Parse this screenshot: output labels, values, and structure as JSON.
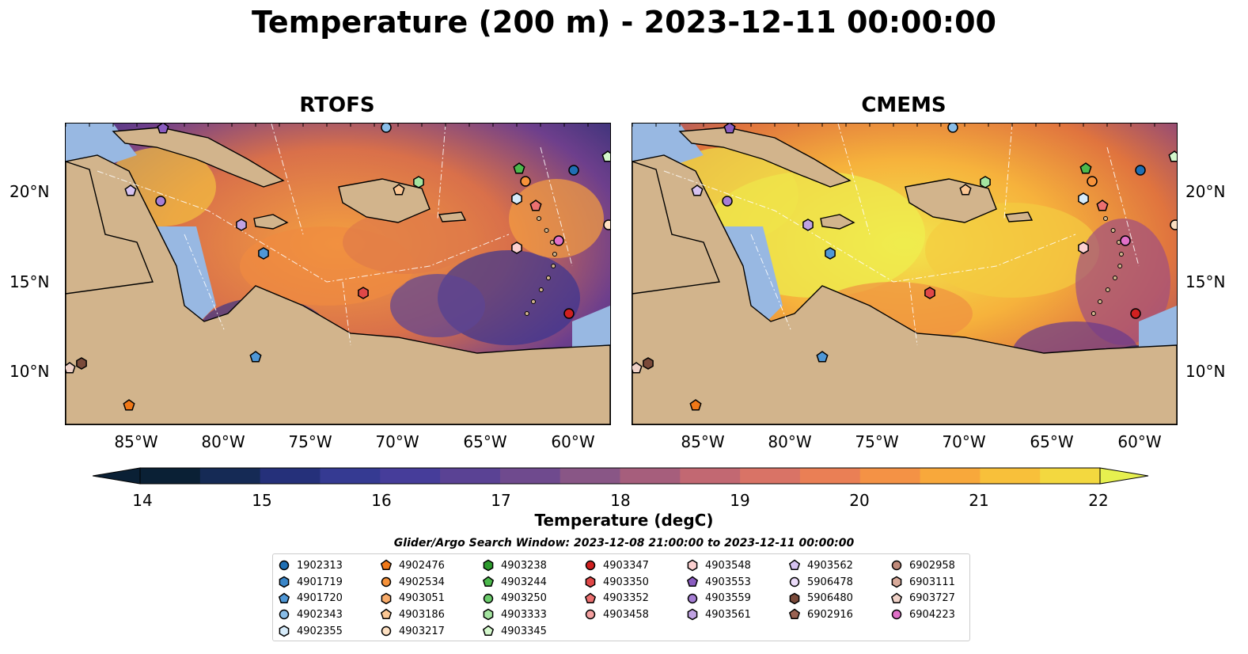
{
  "title": "Temperature (200 m) - 2023-12-11 00:00:00",
  "panels": [
    {
      "title": "RTOFS"
    },
    {
      "title": "CMEMS"
    }
  ],
  "lat_ticks": [
    "20°N",
    "15°N",
    "10°N"
  ],
  "lon_ticks": [
    "85°W",
    "80°W",
    "75°W",
    "70°W",
    "65°W",
    "60°W"
  ],
  "colorbar": {
    "label": "Temperature (degC)",
    "ticks": [
      "14",
      "15",
      "16",
      "17",
      "18",
      "19",
      "20",
      "21",
      "22"
    ],
    "colors": [
      "#0a2035",
      "#152a55",
      "#25307a",
      "#353a92",
      "#463d9a",
      "#5a4294",
      "#6f4a8e",
      "#895686",
      "#a65e7c",
      "#c26872",
      "#d97366",
      "#ea7f55",
      "#f49245",
      "#f8a83b",
      "#f8c03a",
      "#f3d83f",
      "#e6f04f"
    ]
  },
  "legend": {
    "title": "Glider/Argo Search Window: 2023-12-08 21:00:00 to 2023-12-11 00:00:00",
    "columns": [
      [
        {
          "id": "1902313",
          "shape": "circle",
          "color": "#1f6fb4"
        },
        {
          "id": "4901719",
          "shape": "hexagon",
          "color": "#3a86c8"
        },
        {
          "id": "4901720",
          "shape": "pentagon",
          "color": "#4f97d6"
        },
        {
          "id": "4902343",
          "shape": "circle",
          "color": "#89bde8"
        },
        {
          "id": "4902355",
          "shape": "hexagon",
          "color": "#d6ebfa"
        }
      ],
      [
        {
          "id": "4902476",
          "shape": "pentagon",
          "color": "#f07818"
        },
        {
          "id": "4902534",
          "shape": "circle",
          "color": "#f6923a"
        },
        {
          "id": "4903051",
          "shape": "hexagon",
          "color": "#f8ab6a"
        },
        {
          "id": "4903186",
          "shape": "pentagon",
          "color": "#fbc794"
        },
        {
          "id": "4903217",
          "shape": "circle",
          "color": "#fde0c2"
        }
      ],
      [
        {
          "id": "4903238",
          "shape": "hexagon",
          "color": "#2c9a2c"
        },
        {
          "id": "4903244",
          "shape": "pentagon",
          "color": "#4cb84c"
        },
        {
          "id": "4903250",
          "shape": "circle",
          "color": "#6ccc6c"
        },
        {
          "id": "4903333",
          "shape": "hexagon",
          "color": "#a4e4a0"
        },
        {
          "id": "4903345",
          "shape": "pentagon",
          "color": "#d4f8cc"
        }
      ],
      [
        {
          "id": "4903347",
          "shape": "circle",
          "color": "#d02020"
        },
        {
          "id": "4903350",
          "shape": "hexagon",
          "color": "#e04848"
        },
        {
          "id": "4903352",
          "shape": "pentagon",
          "color": "#ec7070"
        },
        {
          "id": "4903458",
          "shape": "circle",
          "color": "#f4a0a0"
        }
      ],
      [
        {
          "id": "4903548",
          "shape": "hexagon",
          "color": "#fcd0d0"
        },
        {
          "id": "4903553",
          "shape": "pentagon",
          "color": "#8a5cc0"
        },
        {
          "id": "4903559",
          "shape": "circle",
          "color": "#a67ed4"
        },
        {
          "id": "4903561",
          "shape": "hexagon",
          "color": "#c0a2e2"
        }
      ],
      [
        {
          "id": "4903562",
          "shape": "pentagon",
          "color": "#d6c2f0"
        },
        {
          "id": "5906478",
          "shape": "circle",
          "color": "#ecdcfa"
        },
        {
          "id": "5906480",
          "shape": "hexagon",
          "color": "#7a4a3a"
        },
        {
          "id": "6902916",
          "shape": "pentagon",
          "color": "#9a6252"
        }
      ],
      [
        {
          "id": "6902958",
          "shape": "circle",
          "color": "#c08a7a"
        },
        {
          "id": "6903111",
          "shape": "hexagon",
          "color": "#d8aa9a"
        },
        {
          "id": "6903727",
          "shape": "pentagon",
          "color": "#f0d2c8"
        },
        {
          "id": "6904223",
          "shape": "circle",
          "color": "#e070c8"
        }
      ]
    ]
  },
  "colors": {
    "land": "#d2b48c",
    "shelf": "#98b8e2",
    "coast": "#000000"
  }
}
